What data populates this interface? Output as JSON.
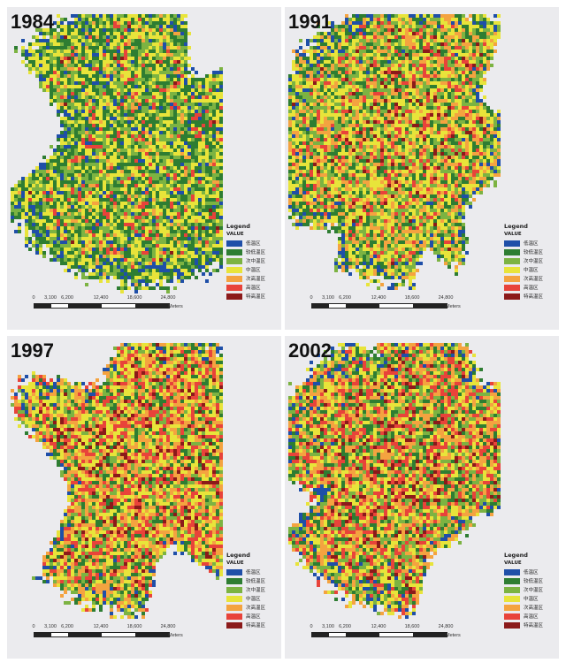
{
  "panels": [
    {
      "year": "1984",
      "mix": [
        0.04,
        0.28,
        0.22,
        0.3,
        0.06,
        0.08,
        0.02
      ]
    },
    {
      "year": "1991",
      "mix": [
        0.04,
        0.18,
        0.18,
        0.28,
        0.2,
        0.11,
        0.01
      ]
    },
    {
      "year": "1997",
      "mix": [
        0.03,
        0.12,
        0.12,
        0.25,
        0.22,
        0.22,
        0.04
      ]
    },
    {
      "year": "2002",
      "mix": [
        0.04,
        0.14,
        0.16,
        0.2,
        0.22,
        0.2,
        0.04
      ]
    }
  ],
  "legend": {
    "title": "Legend",
    "subtitle": "VALUE",
    "classes": [
      {
        "label": "低温区",
        "color": "#1f4fa8"
      },
      {
        "label": "较低温区",
        "color": "#2e7d32"
      },
      {
        "label": "次中温区",
        "color": "#7cb342"
      },
      {
        "label": "中温区",
        "color": "#e8e43a"
      },
      {
        "label": "次高温区",
        "color": "#f4a340"
      },
      {
        "label": "高温区",
        "color": "#e8433a"
      },
      {
        "label": "特高温区",
        "color": "#8b1a1a"
      }
    ]
  },
  "scalebar": {
    "ticks": [
      "0",
      "3,100",
      "6,200",
      "12,400",
      "18,600",
      "24,800"
    ],
    "unit": "Meters"
  }
}
